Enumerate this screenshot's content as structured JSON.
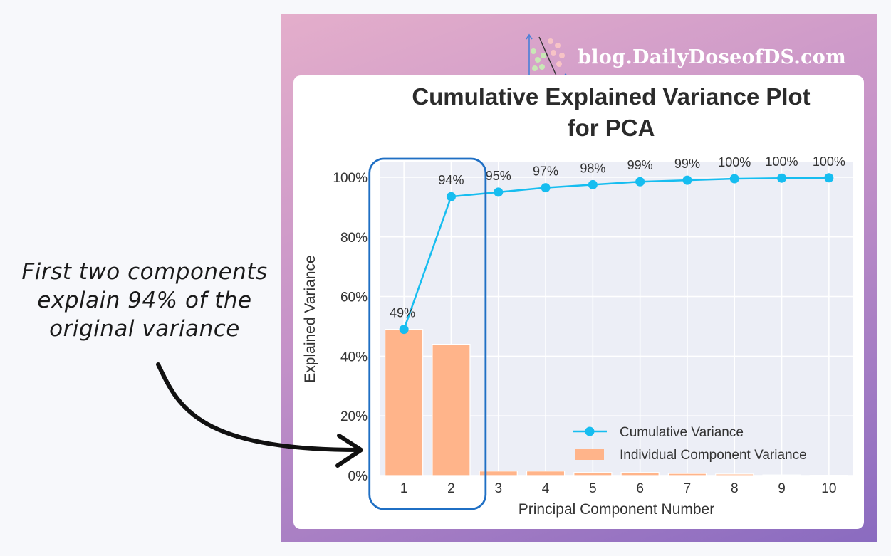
{
  "annotation": {
    "lines": [
      "First two components",
      "explain 94% of the",
      "original variance"
    ]
  },
  "brand": {
    "text": "blog.DailyDoseofDS.com"
  },
  "colors": {
    "bar": "#ffb48a",
    "line": "#16bdf0",
    "highlight": "#1f6fc4",
    "plot_bg": "#eceef6",
    "grid": "#ffffff"
  },
  "chart_data": {
    "type": "bar",
    "title": [
      "Cumulative Explained Variance Plot",
      "for PCA"
    ],
    "xlabel": "Principal Component Number",
    "ylabel": "Explained Variance",
    "categories": [
      "1",
      "2",
      "3",
      "4",
      "5",
      "6",
      "7",
      "8",
      "9",
      "10"
    ],
    "ylim": [
      0,
      1.05
    ],
    "yticks": [
      "0%",
      "20%",
      "40%",
      "60%",
      "80%",
      "100%"
    ],
    "grid": true,
    "legend_position": "bottom-right",
    "series": [
      {
        "name": "Individual Component Variance",
        "type": "bar",
        "values": [
          0.49,
          0.44,
          0.015,
          0.015,
          0.01,
          0.01,
          0.007,
          0.005,
          0.002,
          0.001
        ]
      },
      {
        "name": "Cumulative Variance",
        "type": "line",
        "values": [
          0.49,
          0.935,
          0.95,
          0.965,
          0.975,
          0.985,
          0.99,
          0.995,
          0.997,
          0.998
        ],
        "labels": [
          "49%",
          "94%",
          "95%",
          "97%",
          "98%",
          "99%",
          "99%",
          "100%",
          "100%",
          "100%"
        ]
      }
    ],
    "highlight_categories": [
      "1",
      "2"
    ]
  }
}
